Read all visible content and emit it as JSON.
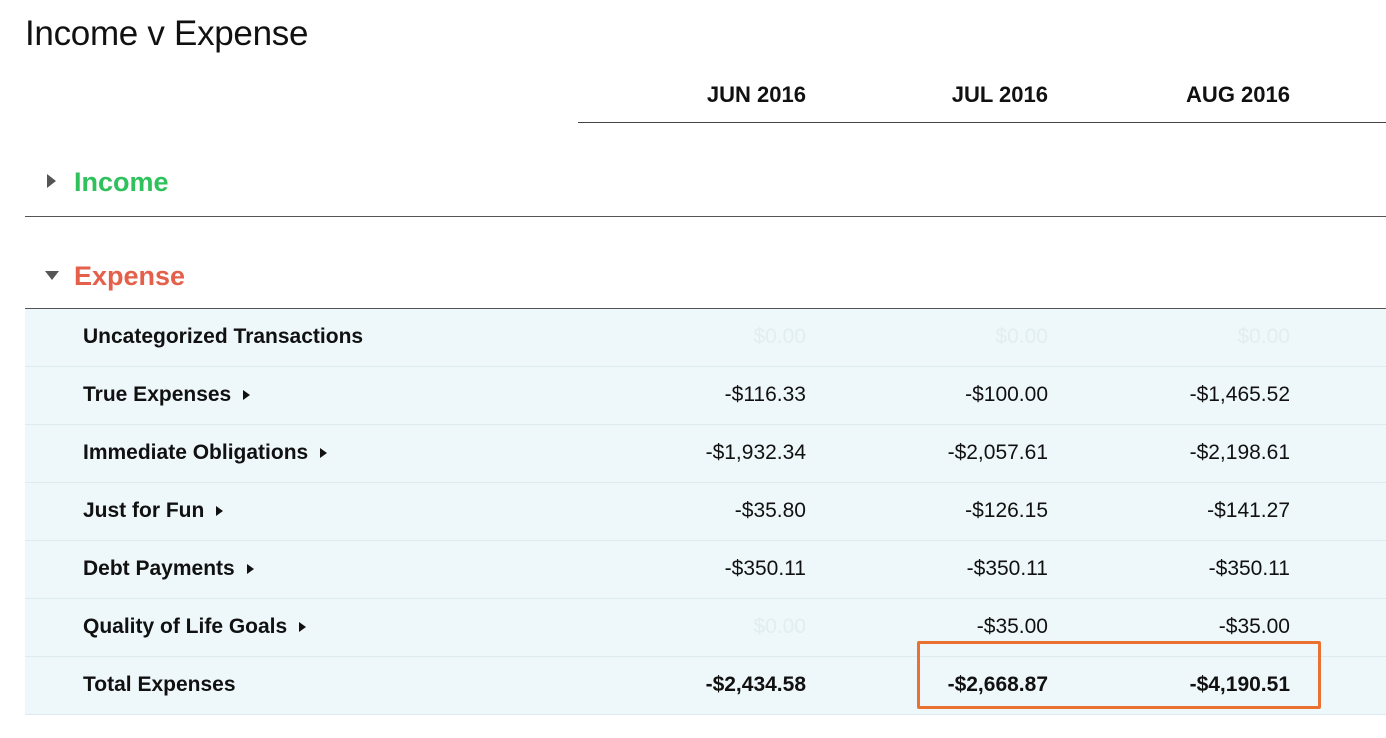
{
  "report": {
    "title": "Income v Expense"
  },
  "columns": [
    "JUN 2016",
    "JUL 2016",
    "AUG 2016"
  ],
  "sections": {
    "income": {
      "label": "Income",
      "expanded": false,
      "color": "#2fc15c"
    },
    "expense": {
      "label": "Expense",
      "expanded": true,
      "color": "#e4604b"
    }
  },
  "expense_rows": [
    {
      "label": "Uncategorized Transactions",
      "has_caret": false,
      "values": [
        "$0.00",
        "$0.00",
        "$0.00"
      ]
    },
    {
      "label": "True Expenses",
      "has_caret": true,
      "values": [
        "-$116.33",
        "-$100.00",
        "-$1,465.52"
      ]
    },
    {
      "label": "Immediate Obligations",
      "has_caret": true,
      "values": [
        "-$1,932.34",
        "-$2,057.61",
        "-$2,198.61"
      ]
    },
    {
      "label": "Just for Fun",
      "has_caret": true,
      "values": [
        "-$35.80",
        "-$126.15",
        "-$141.27"
      ]
    },
    {
      "label": "Debt Payments",
      "has_caret": true,
      "values": [
        "-$350.11",
        "-$350.11",
        "-$350.11"
      ]
    },
    {
      "label": "Quality of Life Goals",
      "has_caret": true,
      "values": [
        "$0.00",
        "-$35.00",
        "-$35.00"
      ]
    }
  ],
  "total": {
    "label": "Total Expenses",
    "values": [
      "-$2,434.58",
      "-$2,668.87",
      "-$4,190.51"
    ]
  },
  "colors": {
    "row_background": "#eef7fa",
    "highlight_border": "#ea7131",
    "zero_value": "#e1eef1"
  }
}
